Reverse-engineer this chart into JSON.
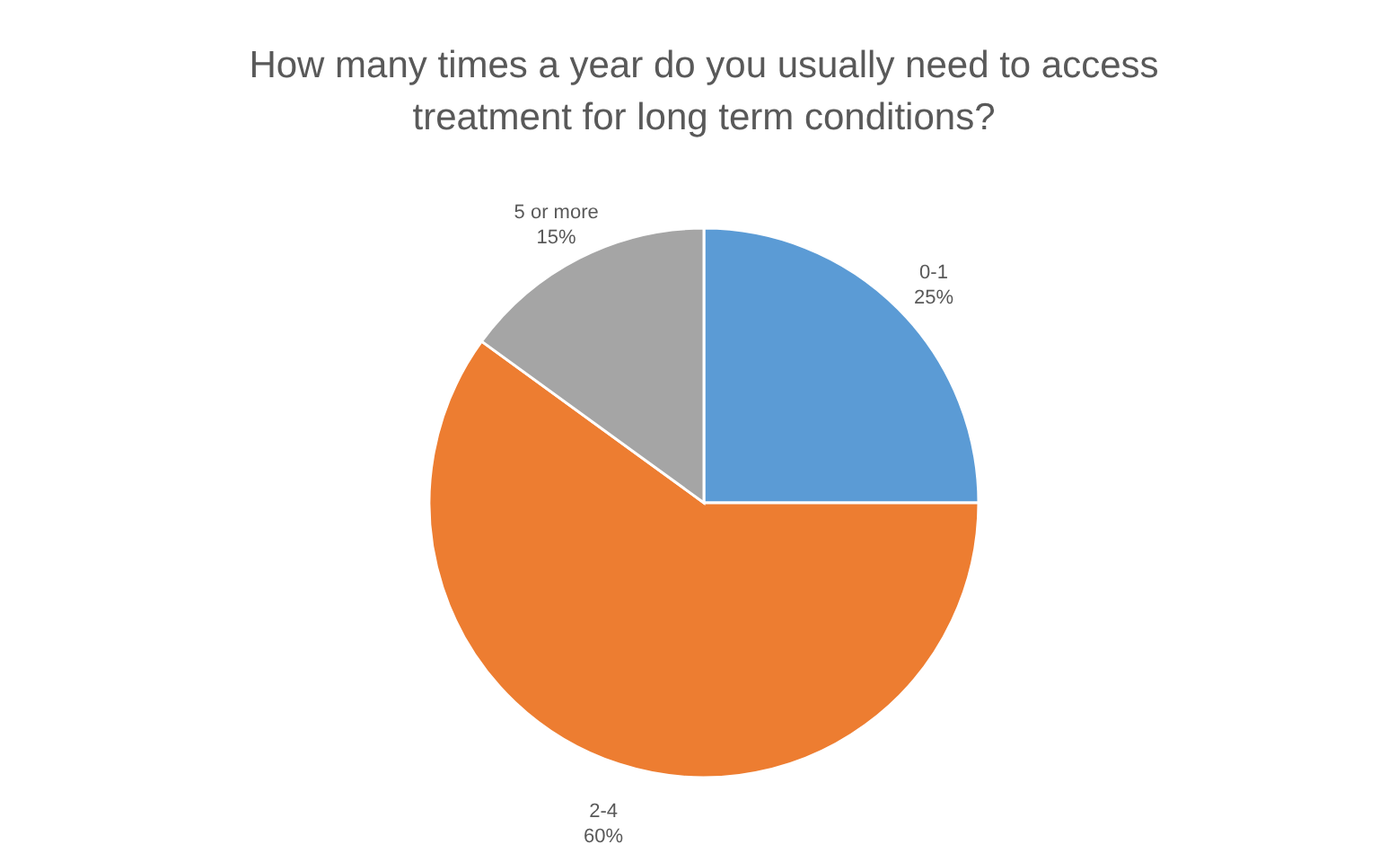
{
  "chart_data": {
    "type": "pie",
    "title": "How many times a year do you usually need to access\ntreatment for long term conditions?",
    "categories": [
      "0-1",
      "2-4",
      "5 or more"
    ],
    "values": [
      25,
      60,
      15
    ],
    "colors": [
      "#5b9bd5",
      "#ed7d31",
      "#a5a5a5"
    ],
    "value_labels": [
      "25%",
      "60%",
      "15%"
    ],
    "legend": false
  }
}
